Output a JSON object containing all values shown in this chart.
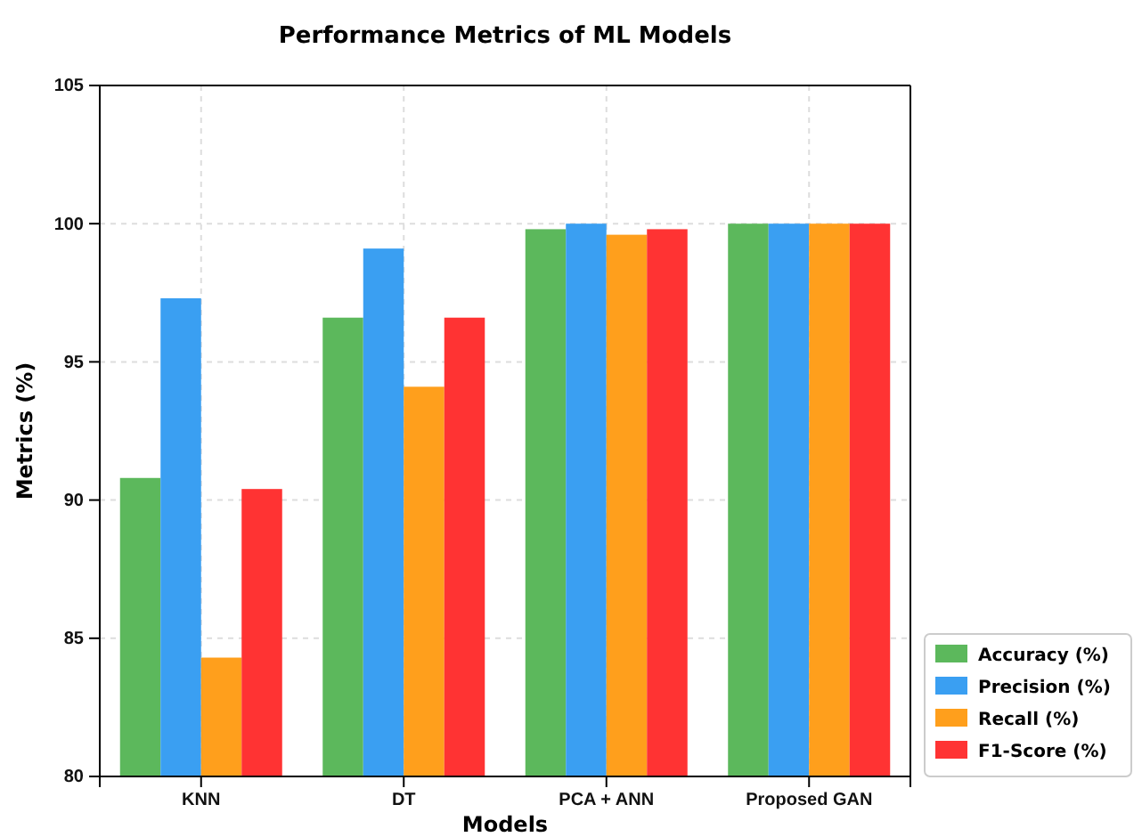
{
  "chart_data": {
    "type": "bar",
    "title": "Performance Metrics of ML Models",
    "xlabel": "Models",
    "ylabel": "Metrics (%)",
    "categories": [
      "KNN",
      "DT",
      "PCA + ANN",
      "Proposed GAN"
    ],
    "series": [
      {
        "name": "Accuracy (%)",
        "color": "#5cb85c",
        "values": [
          90.8,
          96.6,
          99.8,
          100
        ]
      },
      {
        "name": "Precision (%)",
        "color": "#3a9ff2",
        "values": [
          97.3,
          99.1,
          100,
          100
        ]
      },
      {
        "name": "Recall (%)",
        "color": "#ff9f1c",
        "values": [
          84.3,
          94.1,
          99.6,
          100
        ]
      },
      {
        "name": "F1-Score (%)",
        "color": "#ff3333",
        "values": [
          90.4,
          96.6,
          99.8,
          100
        ]
      }
    ],
    "ylim": [
      80,
      105
    ],
    "yticks": [
      80,
      85,
      90,
      95,
      100,
      105
    ],
    "grid": true,
    "legend": "bottom right"
  }
}
